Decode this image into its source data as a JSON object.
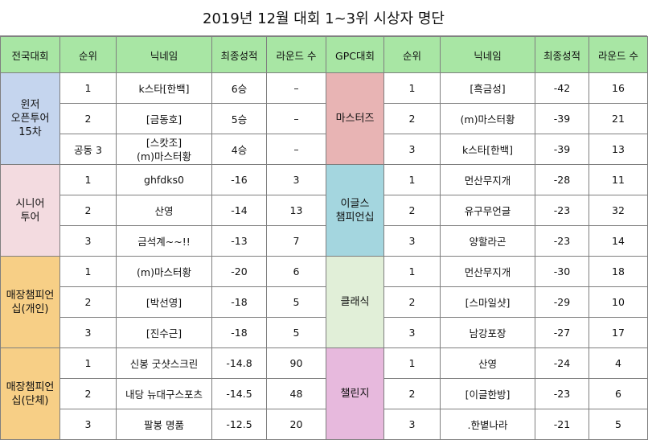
{
  "title": "2019년 12월 대회 1~3위 시상자 명단",
  "headers": {
    "left": [
      "전국대회",
      "순위",
      "닉네임",
      "최종성적",
      "라운드 수"
    ],
    "right": [
      "GPC대회",
      "순위",
      "닉네임",
      "최종성적",
      "라운드 수"
    ]
  },
  "left_groups": [
    {
      "name": "윈저\n오픈투어\n15차",
      "color": "#c5d5ee",
      "rows": [
        {
          "rank": "1",
          "nick": "k스타[한백]",
          "result": "6승",
          "rounds": "–"
        },
        {
          "rank": "2",
          "nick": "[금동호]",
          "result": "5승",
          "rounds": "–"
        },
        {
          "rank": "공동 3",
          "nick": "[스캇조]\n(m)마스터황",
          "result": "4승",
          "rounds": "–"
        }
      ]
    },
    {
      "name": "시니어\n투어",
      "color": "#f3dbe0",
      "rows": [
        {
          "rank": "1",
          "nick": "ghfdks0",
          "result": "-16",
          "rounds": "3"
        },
        {
          "rank": "2",
          "nick": "산영",
          "result": "-14",
          "rounds": "13"
        },
        {
          "rank": "3",
          "nick": "금석계~~!!",
          "result": "-13",
          "rounds": "7"
        }
      ]
    },
    {
      "name": "매장챔피언\n십(개인)",
      "color": "#f7cf86",
      "rows": [
        {
          "rank": "1",
          "nick": "(m)마스터황",
          "result": "-20",
          "rounds": "6"
        },
        {
          "rank": "2",
          "nick": "[박선영]",
          "result": "-18",
          "rounds": "5"
        },
        {
          "rank": "3",
          "nick": "[진수근]",
          "result": "-18",
          "rounds": "5"
        }
      ]
    },
    {
      "name": "매장챔피언\n십(단체)",
      "color": "#f7cf86",
      "rows": [
        {
          "rank": "1",
          "nick": "신봉 굿샷스크린",
          "result": "-14.8",
          "rounds": "90"
        },
        {
          "rank": "2",
          "nick": "내당 뉴대구스포츠",
          "result": "-14.5",
          "rounds": "48"
        },
        {
          "rank": "3",
          "nick": "팔봉 명품",
          "result": "-12.5",
          "rounds": "20"
        }
      ]
    }
  ],
  "right_groups": [
    {
      "name": "마스터즈",
      "color": "#e8b4b4",
      "rows": [
        {
          "rank": "1",
          "nick": "[흑금성]",
          "result": "-42",
          "rounds": "16"
        },
        {
          "rank": "2",
          "nick": "(m)마스터황",
          "result": "-39",
          "rounds": "21"
        },
        {
          "rank": "3",
          "nick": "k스타[한백]",
          "result": "-39",
          "rounds": "13"
        }
      ]
    },
    {
      "name": "이글스\n챔피언십",
      "color": "#a4d6df",
      "rows": [
        {
          "rank": "1",
          "nick": "먼산무지개",
          "result": "-28",
          "rounds": "11"
        },
        {
          "rank": "2",
          "nick": "유구무언글",
          "result": "-23",
          "rounds": "32"
        },
        {
          "rank": "3",
          "nick": "양할라곤",
          "result": "-23",
          "rounds": "14"
        }
      ]
    },
    {
      "name": "클래식",
      "color": "#e1efd8",
      "rows": [
        {
          "rank": "1",
          "nick": "먼산무지개",
          "result": "-30",
          "rounds": "18"
        },
        {
          "rank": "2",
          "nick": "[스마일샷]",
          "result": "-29",
          "rounds": "10"
        },
        {
          "rank": "3",
          "nick": "남강포장",
          "result": "-27",
          "rounds": "17"
        }
      ]
    },
    {
      "name": "챌린지",
      "color": "#e7b9dd",
      "rows": [
        {
          "rank": "1",
          "nick": "산영",
          "result": "-24",
          "rounds": "4"
        },
        {
          "rank": "2",
          "nick": "[이글한방]",
          "result": "-23",
          "rounds": "6"
        },
        {
          "rank": "3",
          "nick": ".한볕나라",
          "result": "-21",
          "rounds": "5"
        }
      ]
    }
  ]
}
